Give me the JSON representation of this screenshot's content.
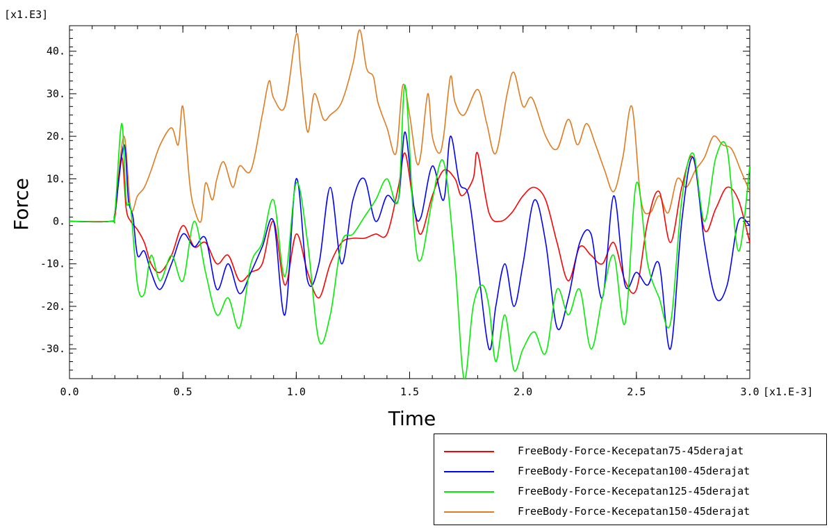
{
  "chart_data": {
    "type": "line",
    "title": "",
    "xlabel": "Time",
    "ylabel": "Force",
    "x_multiplier": "[x1.E-3]",
    "y_multiplier": "[x1.E3]",
    "xlim": [
      0,
      3.0
    ],
    "ylim": [
      -37,
      46
    ],
    "x_ticks": [
      0.0,
      0.5,
      1.0,
      1.5,
      2.0,
      2.5,
      3.0
    ],
    "x_tick_labels": [
      "0.0",
      "0.5",
      "1.0",
      "1.5",
      "2.0",
      "2.5",
      "3.0"
    ],
    "y_ticks": [
      -30,
      -20,
      -10,
      0,
      10,
      20,
      30,
      40
    ],
    "y_tick_labels": [
      "-30.",
      "-20.",
      "-10.",
      "0.",
      "10.",
      "20.",
      "30.",
      "40."
    ],
    "grid": false,
    "legend_position": "bottom-right",
    "series": [
      {
        "name": "FreeBody-Force-Kecepatan75-45derajat",
        "color": "#ff0000",
        "x": [
          0,
          0.18,
          0.2,
          0.23,
          0.25,
          0.27,
          0.3,
          0.33,
          0.36,
          0.4,
          0.45,
          0.5,
          0.55,
          0.6,
          0.65,
          0.7,
          0.75,
          0.8,
          0.85,
          0.9,
          0.95,
          1.0,
          1.05,
          1.1,
          1.15,
          1.2,
          1.25,
          1.3,
          1.35,
          1.4,
          1.45,
          1.48,
          1.52,
          1.55,
          1.6,
          1.65,
          1.7,
          1.73,
          1.78,
          1.8,
          1.85,
          1.9,
          1.95,
          2.0,
          2.05,
          2.1,
          2.15,
          2.2,
          2.25,
          2.3,
          2.35,
          2.4,
          2.45,
          2.5,
          2.55,
          2.6,
          2.65,
          2.7,
          2.75,
          2.8,
          2.85,
          2.9,
          2.95,
          3.0
        ],
        "y": [
          0,
          0,
          1,
          15,
          3,
          0,
          -2,
          -5,
          -10,
          -12,
          -8,
          -1,
          -6,
          -5,
          -10,
          -8,
          -14,
          -12,
          -10,
          0,
          -15,
          -3,
          -12,
          -18,
          -10,
          -5,
          -4,
          -4,
          -3,
          -3,
          8,
          16,
          3,
          -3,
          6,
          12,
          10,
          6,
          10,
          16,
          2,
          0,
          2,
          6,
          8,
          5,
          -5,
          -14,
          -6,
          -8,
          -10,
          -5,
          -14,
          -16,
          0,
          7,
          -5,
          8,
          15,
          -2,
          3,
          8,
          5,
          -5
        ]
      },
      {
        "name": "FreeBody-Force-Kecepatan100-45derajat",
        "color": "#0000ff",
        "x": [
          0,
          0.18,
          0.2,
          0.24,
          0.26,
          0.28,
          0.3,
          0.33,
          0.36,
          0.4,
          0.45,
          0.5,
          0.55,
          0.6,
          0.65,
          0.7,
          0.75,
          0.8,
          0.85,
          0.9,
          0.95,
          1.0,
          1.05,
          1.1,
          1.15,
          1.2,
          1.25,
          1.3,
          1.35,
          1.4,
          1.45,
          1.48,
          1.52,
          1.55,
          1.6,
          1.65,
          1.68,
          1.72,
          1.76,
          1.8,
          1.85,
          1.88,
          1.92,
          1.96,
          2.0,
          2.05,
          2.1,
          2.15,
          2.2,
          2.25,
          2.3,
          2.35,
          2.4,
          2.45,
          2.5,
          2.55,
          2.6,
          2.65,
          2.7,
          2.75,
          2.8,
          2.85,
          2.9,
          2.95,
          3.0
        ],
        "y": [
          0,
          0,
          2,
          18,
          5,
          1,
          -8,
          -7,
          -12,
          -16,
          -10,
          -3,
          -6,
          -4,
          -16,
          -10,
          -17,
          -12,
          -6,
          0,
          -22,
          10,
          -14,
          -10,
          8,
          -10,
          5,
          10,
          0,
          6,
          5,
          21,
          3,
          1,
          13,
          5,
          20,
          9,
          6,
          -10,
          -30,
          -20,
          -10,
          -20,
          -10,
          5,
          -5,
          -25,
          -18,
          -5,
          -3,
          -18,
          6,
          -15,
          -12,
          -15,
          -10,
          -30,
          0,
          15,
          -5,
          -18,
          -15,
          0,
          -1
        ]
      },
      {
        "name": "FreeBody-Force-Kecepatan125-45derajat",
        "color": "#00ee00",
        "x": [
          0,
          0.18,
          0.2,
          0.23,
          0.25,
          0.27,
          0.3,
          0.33,
          0.36,
          0.4,
          0.45,
          0.5,
          0.55,
          0.6,
          0.65,
          0.7,
          0.75,
          0.8,
          0.85,
          0.9,
          0.95,
          1.0,
          1.05,
          1.1,
          1.15,
          1.2,
          1.25,
          1.3,
          1.35,
          1.4,
          1.45,
          1.48,
          1.52,
          1.55,
          1.6,
          1.65,
          1.7,
          1.74,
          1.78,
          1.82,
          1.85,
          1.88,
          1.92,
          1.96,
          2.0,
          2.05,
          2.1,
          2.15,
          2.2,
          2.25,
          2.3,
          2.35,
          2.4,
          2.45,
          2.5,
          2.55,
          2.6,
          2.65,
          2.7,
          2.75,
          2.8,
          2.85,
          2.9,
          2.95,
          3.0
        ],
        "y": [
          0,
          0,
          2,
          23,
          5,
          3,
          -15,
          -17,
          -8,
          -14,
          -8,
          -14,
          0,
          -12,
          -22,
          -18,
          -25,
          -10,
          -5,
          5,
          -13,
          9,
          -5,
          -28,
          -22,
          -5,
          -3,
          1,
          5,
          10,
          5,
          32,
          -2,
          -9,
          5,
          14,
          -10,
          -37,
          -20,
          -15,
          -20,
          -33,
          -22,
          -35,
          -30,
          -26,
          -31,
          -16,
          -22,
          -16,
          -30,
          -18,
          -8,
          -24,
          9,
          -10,
          -18,
          -24,
          5,
          16,
          0,
          15,
          17,
          -7,
          13
        ]
      },
      {
        "name": "FreeBody-Force-Kecepatan150-45derajat",
        "color": "#e07b1f",
        "x": [
          0,
          0.18,
          0.2,
          0.24,
          0.27,
          0.3,
          0.33,
          0.36,
          0.4,
          0.45,
          0.48,
          0.5,
          0.53,
          0.55,
          0.58,
          0.6,
          0.63,
          0.65,
          0.68,
          0.72,
          0.75,
          0.8,
          0.85,
          0.88,
          0.9,
          0.95,
          1.0,
          1.02,
          1.05,
          1.08,
          1.12,
          1.15,
          1.2,
          1.25,
          1.28,
          1.31,
          1.34,
          1.36,
          1.4,
          1.44,
          1.47,
          1.5,
          1.53,
          1.55,
          1.58,
          1.6,
          1.63,
          1.65,
          1.68,
          1.7,
          1.74,
          1.8,
          1.84,
          1.88,
          1.93,
          1.96,
          2.0,
          2.04,
          2.1,
          2.15,
          2.2,
          2.24,
          2.28,
          2.32,
          2.36,
          2.4,
          2.44,
          2.48,
          2.52,
          2.56,
          2.6,
          2.64,
          2.68,
          2.72,
          2.76,
          2.8,
          2.84,
          2.88,
          2.92,
          2.96,
          3.0
        ],
        "y": [
          0,
          0,
          2,
          20,
          3,
          6,
          8,
          12,
          18,
          22,
          18,
          27,
          9,
          3,
          0,
          9,
          5,
          10,
          14,
          8,
          13,
          12,
          25,
          33,
          29,
          27,
          44,
          35,
          21,
          30,
          24,
          25,
          28,
          37,
          45,
          36,
          34,
          28,
          22,
          16,
          32,
          25,
          14,
          16,
          30,
          20,
          16,
          20,
          34,
          28,
          25,
          31,
          23,
          16,
          30,
          35,
          27,
          29,
          20,
          17,
          24,
          18,
          23,
          18,
          12,
          7,
          15,
          27,
          5,
          2,
          6,
          2,
          10,
          8,
          12,
          15,
          20,
          18,
          17,
          12,
          7
        ]
      }
    ]
  }
}
